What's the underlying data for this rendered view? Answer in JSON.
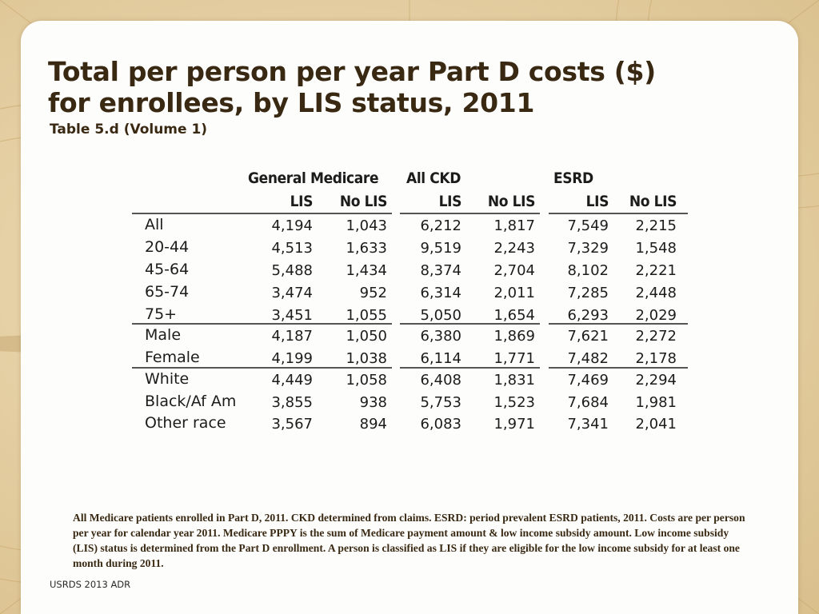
{
  "slide": {
    "title_line1": "Total per person per year Part D costs ($)",
    "title_line2": "for enrollees, by LIS status, 2011",
    "subtitle": "Table 5.d (Volume 1)",
    "footnote": "All Medicare patients enrolled in Part D, 2011. CKD determined from claims. ESRD: period prevalent ESRD patients, 2011. Costs are per person per year for calendar year 2011. Medicare PPPY is the sum of Medicare payment amount & low income subsidy amount. Low income subsidy (LIS) status is determined from the Part D enrollment. A person is classified as LIS if they are eligible for the low income subsidy for at least one month during 2011.",
    "source": "USRDS 2013 ADR"
  },
  "table": {
    "groups": [
      {
        "label": "General Medicare",
        "cols": [
          "LIS",
          "No LIS"
        ]
      },
      {
        "label": "All CKD",
        "cols": [
          "LIS",
          "No LIS"
        ]
      },
      {
        "label": "ESRD",
        "cols": [
          "LIS",
          "No LIS"
        ]
      }
    ],
    "rows": [
      {
        "label": "All",
        "values": [
          "4,194",
          "1,043",
          "6,212",
          "1,817",
          "7,549",
          "2,215"
        ]
      },
      {
        "label": "20-44",
        "values": [
          "4,513",
          "1,633",
          "9,519",
          "2,243",
          "7,329",
          "1,548"
        ]
      },
      {
        "label": "45-64",
        "values": [
          "5,488",
          "1,434",
          "8,374",
          "2,704",
          "8,102",
          "2,221"
        ]
      },
      {
        "label": "65-74",
        "values": [
          "3,474",
          "952",
          "6,314",
          "2,011",
          "7,285",
          "2,448"
        ]
      },
      {
        "label": "75+",
        "values": [
          "3,451",
          "1,055",
          "5,050",
          "1,654",
          "6,293",
          "2,029"
        ]
      },
      {
        "label": "Male",
        "values": [
          "4,187",
          "1,050",
          "6,380",
          "1,869",
          "7,621",
          "2,272"
        ]
      },
      {
        "label": "Female",
        "values": [
          "4,199",
          "1,038",
          "6,114",
          "1,771",
          "7,482",
          "2,178"
        ]
      },
      {
        "label": "White",
        "values": [
          "4,449",
          "1,058",
          "6,408",
          "1,831",
          "7,469",
          "2,294"
        ]
      },
      {
        "label": "Black/Af Am",
        "values": [
          "3,855",
          "938",
          "5,753",
          "1,523",
          "7,684",
          "1,981"
        ]
      },
      {
        "label": "Other race",
        "values": [
          "3,567",
          "894",
          "6,083",
          "1,971",
          "7,341",
          "2,041"
        ]
      }
    ]
  }
}
